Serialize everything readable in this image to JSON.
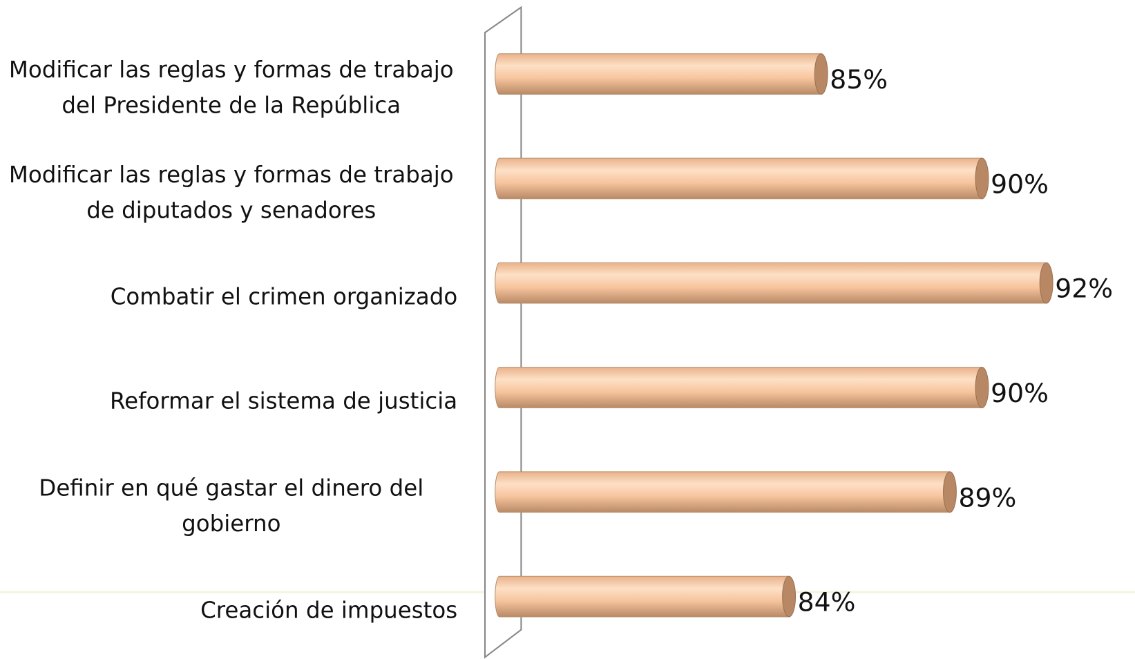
{
  "chart_data": {
    "type": "bar",
    "orientation": "horizontal",
    "categories": [
      "Modificar las reglas y formas de trabajo del Presidente de la República",
      "Modificar las reglas y formas de trabajo de diputados y senadores",
      "Combatir el crimen organizado",
      "Reformar el sistema de justicia",
      "Definir en qué gastar el dinero del gobierno",
      "Creación de impuestos"
    ],
    "values": [
      85,
      90,
      92,
      90,
      89,
      84
    ],
    "value_labels": [
      "85%",
      "90%",
      "92%",
      "90%",
      "89%",
      "84%"
    ],
    "color": "#f5c49b",
    "xlim": [
      75,
      93
    ]
  }
}
